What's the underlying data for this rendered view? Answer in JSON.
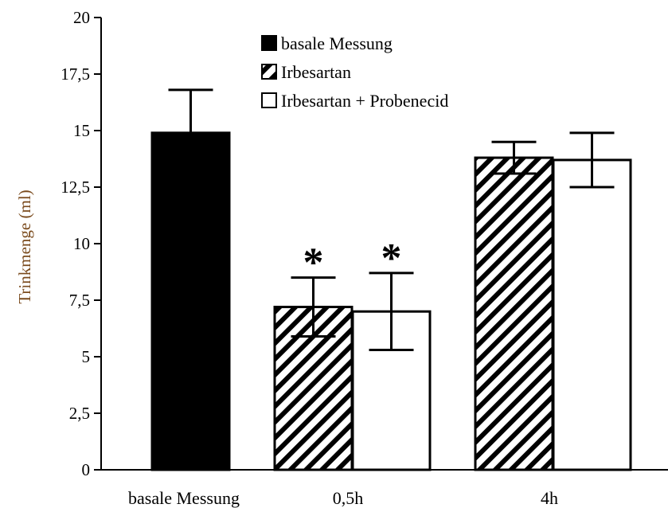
{
  "chart_data": {
    "type": "bar",
    "ylabel": "Trinkmenge (ml)",
    "ylim": [
      0,
      20
    ],
    "yticks": [
      "0",
      "2,5",
      "5",
      "7,5",
      "10",
      "12,5",
      "15",
      "17,5",
      "20"
    ],
    "groups": [
      "basale Messung",
      "0,5h",
      "4h"
    ],
    "series": [
      {
        "name": "basale Messung",
        "fill": "solid",
        "values": [
          14.9,
          null,
          null
        ],
        "errors": [
          1.9,
          null,
          null
        ]
      },
      {
        "name": "Irbesartan",
        "fill": "hatched",
        "values": [
          null,
          7.2,
          13.8
        ],
        "errors": [
          null,
          1.3,
          0.7
        ]
      },
      {
        "name": "Irbesartan + Probenecid",
        "fill": "white",
        "values": [
          null,
          7.0,
          13.7
        ],
        "errors": [
          null,
          1.7,
          1.2
        ]
      }
    ],
    "annotations": [
      {
        "text": "*",
        "group": "0,5h",
        "series": "Irbesartan"
      },
      {
        "text": "*",
        "group": "0,5h",
        "series": "Irbesartan + Probenecid"
      }
    ],
    "legend_position": "top-center",
    "grid": false
  },
  "colors": {
    "bar_solid": "#000000",
    "bar_white": "#ffffff",
    "stroke": "#000000",
    "ylabel": "#7a4a1c"
  }
}
